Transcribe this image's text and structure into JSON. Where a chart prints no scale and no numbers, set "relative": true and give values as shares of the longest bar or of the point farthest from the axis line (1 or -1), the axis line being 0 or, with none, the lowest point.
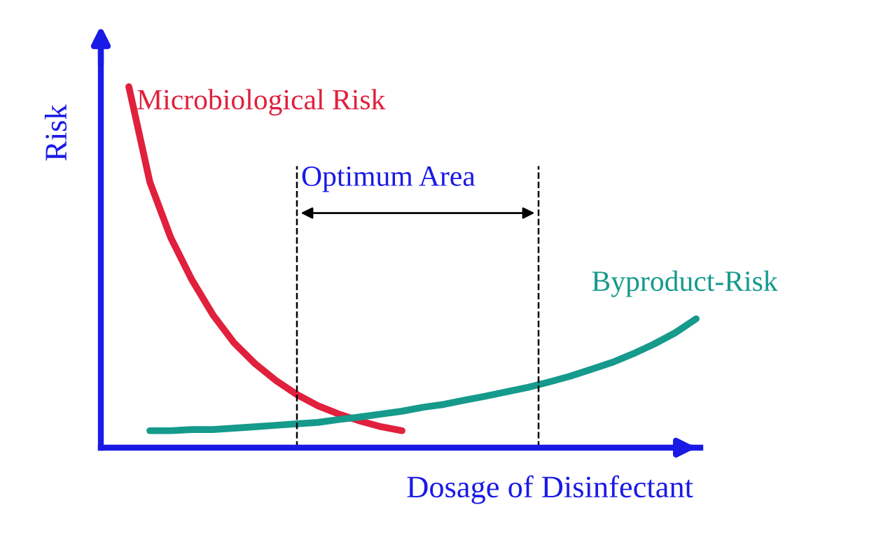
{
  "chart_data": {
    "type": "line",
    "relative": true,
    "xlabel": "Dosage of Disinfectant",
    "ylabel": "Risk",
    "categories": [
      null,
      null,
      null,
      null,
      null,
      null,
      null,
      null,
      null,
      null,
      null,
      null,
      null,
      null,
      null,
      null,
      null,
      null,
      null,
      null,
      null,
      null,
      null,
      null,
      null,
      null,
      null,
      null
    ],
    "series": [
      {
        "name": "Microbiological Risk",
        "color": "#e0203c",
        "values": [
          1,
          0.736,
          0.581,
          0.465,
          0.368,
          0.291,
          0.233,
          0.186,
          0.147,
          0.116,
          0.093,
          0.074,
          0.058,
          0.047,
          null,
          null,
          null,
          null,
          null,
          null,
          null,
          null,
          null,
          null,
          null,
          null,
          null,
          null
        ]
      },
      {
        "name": "Byproduct-Risk",
        "color": "#159a8c",
        "values": [
          null,
          0.047,
          0.047,
          0.05,
          0.05,
          0.054,
          0.058,
          0.062,
          0.066,
          0.07,
          0.078,
          0.085,
          0.093,
          0.101,
          0.112,
          0.12,
          0.132,
          0.143,
          0.155,
          0.167,
          0.182,
          0.198,
          0.217,
          0.236,
          0.26,
          0.287,
          0.318,
          0.357
        ]
      }
    ],
    "annotations": [
      "Optimum Area"
    ],
    "legend": false,
    "marker": "none",
    "line_style": "solid"
  }
}
